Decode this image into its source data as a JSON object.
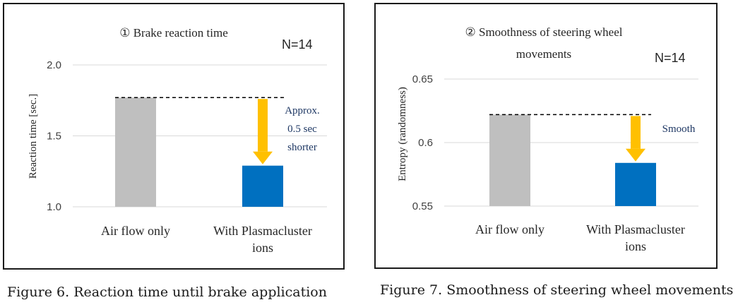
{
  "figures": [
    {
      "caption": "Figure 6. Reaction time until brake application",
      "sample_note": "N=14",
      "chart_data": {
        "type": "bar",
        "title": "① Brake reaction time",
        "ylabel": "Reaction time [sec.]",
        "xlabel": "",
        "categories": [
          "Air flow only",
          "With Plasmacluster ions"
        ],
        "category_lines": [
          [
            "Air flow only"
          ],
          [
            "With Plasmacluster",
            "ions"
          ]
        ],
        "values": [
          1.77,
          1.29
        ],
        "ylim": [
          1.0,
          2.0
        ],
        "yticks": [
          "1.0",
          "1.5",
          "2.0"
        ],
        "grid": true,
        "bar_colors": [
          "#bfbfbf",
          "#0070c0"
        ],
        "annotation_lines": [
          "Approx.",
          "0.5 sec",
          "shorter"
        ],
        "reference_line_value": 1.77,
        "arrow_color": "#ffc000"
      }
    },
    {
      "caption": "Figure 7. Smoothness of steering wheel movements",
      "sample_note": "N=14",
      "chart_data": {
        "type": "bar",
        "title": "② Smoothness of steering wheel movements",
        "title_lines": [
          "② Smoothness of steering wheel",
          "movements"
        ],
        "ylabel": "Entropy (randomness)",
        "xlabel": "",
        "categories": [
          "Air flow only",
          "With Plasmacluster ions"
        ],
        "category_lines": [
          [
            "Air flow only"
          ],
          [
            "With Plasmacluster",
            "ions"
          ]
        ],
        "values": [
          0.622,
          0.584
        ],
        "ylim": [
          0.55,
          0.65
        ],
        "yticks": [
          "0.55",
          "0.6",
          "0.65"
        ],
        "grid": true,
        "bar_colors": [
          "#bfbfbf",
          "#0070c0"
        ],
        "annotation_lines": [
          "Smooth"
        ],
        "reference_line_value": 0.622,
        "arrow_color": "#ffc000"
      }
    }
  ]
}
